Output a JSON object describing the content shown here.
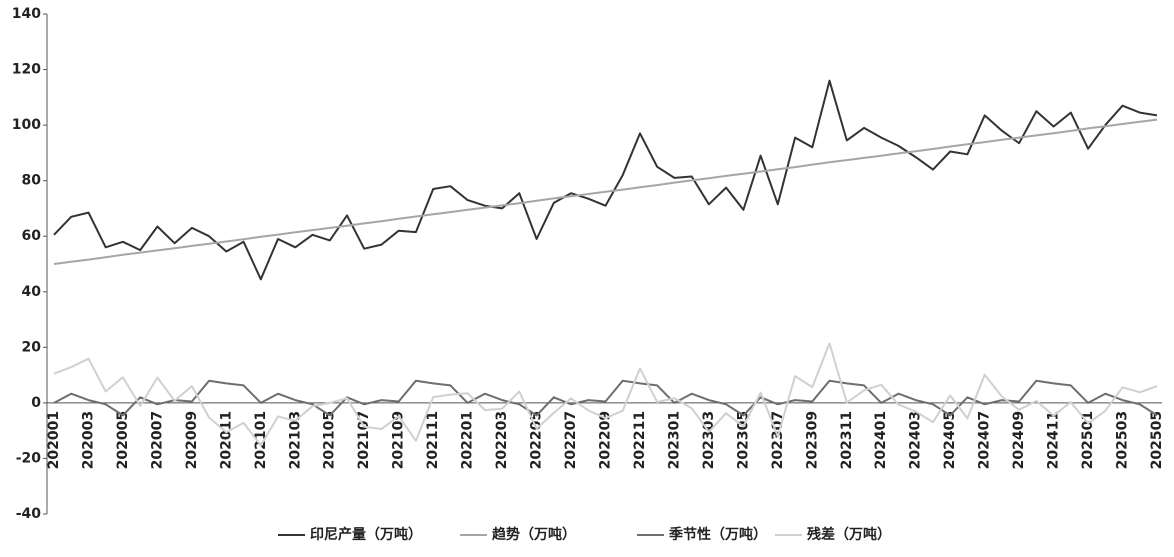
{
  "chart_data": {
    "type": "line",
    "categories": [
      "202001",
      null,
      "202003",
      null,
      "202005",
      null,
      "202007",
      null,
      "202009",
      null,
      "202011",
      null,
      "202101",
      null,
      "202103",
      null,
      "202105",
      null,
      "202107",
      null,
      "202109",
      null,
      "202111",
      null,
      "202201",
      null,
      "202203",
      null,
      "202205",
      null,
      "202207",
      null,
      "202209",
      null,
      "202211",
      null,
      "202301",
      null,
      "202303",
      null,
      "202305",
      null,
      "202307",
      null,
      "202309",
      null,
      "202311",
      null,
      "202401",
      null,
      "202403",
      null,
      "202405",
      null,
      "202407",
      null,
      "202409",
      null,
      "202411",
      null,
      "202501",
      null,
      "202503",
      null,
      "202505"
    ],
    "series": [
      {
        "name": "印尼产量（万吨）",
        "color": "#333333",
        "values": [
          60.5,
          67,
          68.5,
          56,
          58,
          55,
          63.5,
          57.5,
          63,
          60,
          54.5,
          58,
          44.5,
          59,
          56,
          60.5,
          58.5,
          67.5,
          55.5,
          57,
          62,
          61.5,
          77,
          78,
          73,
          71,
          70,
          75.5,
          59,
          72,
          75.5,
          73.5,
          71,
          82,
          97,
          85,
          81,
          81.5,
          71.5,
          77.5,
          69.5,
          89,
          71.5,
          95.5,
          92,
          116,
          94.5,
          99,
          95.5,
          92.5,
          88.5,
          84,
          90.5,
          89.5,
          103.5,
          98,
          93.5,
          105,
          99.5,
          104.5,
          91.5,
          100,
          107,
          104.5,
          103.5
        ]
      },
      {
        "name": "趋势（万吨）",
        "color": "#a6a6a6",
        "values": [
          50.0,
          50.8,
          51.6,
          52.4,
          53.3,
          54.1,
          54.9,
          55.7,
          56.5,
          57.3,
          58.1,
          58.9,
          59.8,
          60.6,
          61.4,
          62.2,
          63.0,
          63.8,
          64.6,
          65.4,
          66.3,
          67.1,
          67.9,
          68.7,
          69.5,
          70.3,
          71.1,
          71.9,
          72.8,
          73.6,
          74.4,
          75.2,
          76.0,
          76.8,
          77.6,
          78.4,
          79.3,
          80.1,
          80.9,
          81.7,
          82.5,
          83.3,
          84.1,
          84.9,
          85.8,
          86.6,
          87.4,
          88.2,
          89.0,
          89.8,
          90.6,
          91.4,
          92.3,
          93.1,
          93.9,
          94.7,
          95.5,
          96.3,
          97.1,
          97.9,
          98.8,
          99.6,
          100.4,
          101.2,
          102.0
        ]
      },
      {
        "name": "季节性（万吨）",
        "color": "#6e6e6e",
        "values": [
          0,
          3.3,
          1,
          -0.5,
          -4.5,
          2,
          -0.5,
          1,
          0.5,
          8,
          7,
          6.3,
          0,
          3.3,
          1,
          -0.5,
          -4.5,
          2,
          -0.5,
          1,
          0.5,
          8,
          7,
          6.3,
          0,
          3.3,
          1,
          -0.5,
          -4.5,
          2,
          -0.5,
          1,
          0.5,
          8,
          7,
          6.3,
          0,
          3.3,
          1,
          -0.5,
          -4.5,
          2,
          -0.5,
          1,
          0.5,
          8,
          7,
          6.3,
          0,
          3.3,
          1,
          -0.5,
          -4.5,
          2,
          -0.5,
          1,
          0.5,
          8,
          7,
          6.3,
          0,
          3.3,
          1,
          -0.5,
          -4.5
        ]
      },
      {
        "name": "残差（万吨）",
        "color": "#d0d0d0",
        "values": [
          10.5,
          12.9,
          15.9,
          4.1,
          9.2,
          -1.1,
          9.1,
          0.8,
          6.0,
          -5.3,
          -10.6,
          -7.2,
          -15.3,
          -4.9,
          -6.4,
          -1.2,
          0,
          1.7,
          -8.6,
          -9.4,
          -4.8,
          -13.6,
          2.1,
          3.0,
          3.5,
          -2.6,
          -2.1,
          4.1,
          -9.3,
          -3.6,
          1.6,
          -2.7,
          -5.5,
          -2.8,
          12.4,
          0.3,
          1.7,
          -1.9,
          -10.4,
          -3.7,
          -8.5,
          3.7,
          -12.1,
          9.6,
          5.7,
          21.4,
          0.1,
          4.5,
          6.5,
          -0.6,
          -3.1,
          -6.9,
          2.7,
          -5.6,
          10.1,
          2.3,
          -2.5,
          0.7,
          -4.6,
          0.3,
          -7.3,
          -2.9,
          5.6,
          3.8,
          6.0
        ]
      }
    ],
    "ylim": [
      -40,
      140
    ],
    "yticks": [
      -40,
      -20,
      0,
      20,
      40,
      60,
      80,
      100,
      120,
      140
    ],
    "grid": false,
    "legend": "bottom"
  }
}
